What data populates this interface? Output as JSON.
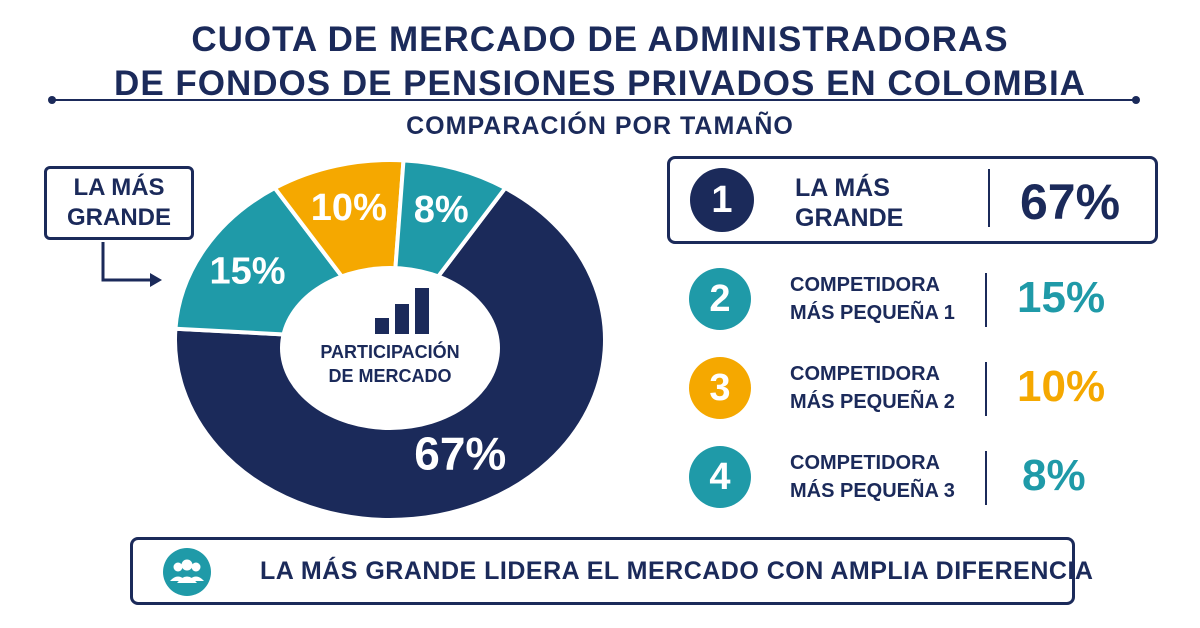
{
  "header": {
    "title_line1": "CUOTA DE MERCADO DE ADMINISTRADORAS",
    "title_line2": "DE FONDOS DE PENSIONES PRIVADOS EN COLOMBIA",
    "subtitle": "COMPARACIÓN POR TAMAÑO"
  },
  "callout": {
    "line1": "LA MÁS",
    "line2": "GRANDE"
  },
  "center": {
    "line1": "PARTICIPACIÓN",
    "line2": "DE MERCADO",
    "icon": "bar-chart-icon"
  },
  "chart_data": {
    "type": "pie",
    "categories": [
      "LA MÁS GRANDE",
      "COMPETIDORA MÁS PEQUEÑA 1",
      "COMPETIDORA MÁS PEQUEÑA 2",
      "COMPETIDORA MÁS PEQUEÑA 3"
    ],
    "values": [
      67,
      15,
      10,
      8
    ],
    "labels": [
      "67%",
      "15%",
      "10%",
      "8%"
    ],
    "colors": [
      "#1b2a5a",
      "#1f9aa8",
      "#f5a800",
      "#1f9aa8"
    ],
    "title": "CUOTA DE MERCADO DE ADMINISTRADORAS DE FONDOS DE PENSIONES PRIVADOS EN COLOMBIA",
    "subtitle": "COMPARACIÓN POR TAMAÑO",
    "style": "donut"
  },
  "ranking": [
    {
      "rank": "1",
      "line1": "LA MÁS",
      "line2": "GRANDE",
      "value": "67%",
      "color": "#1b2a5a"
    },
    {
      "rank": "2",
      "line1": "COMPETIDORA",
      "line2": "MÁS PEQUEÑA 1",
      "value": "15%",
      "color": "#1f9aa8"
    },
    {
      "rank": "3",
      "line1": "COMPETIDORA",
      "line2": "MÁS PEQUEÑA 2",
      "value": "10%",
      "color": "#f5a800"
    },
    {
      "rank": "4",
      "line1": "COMPETIDORA",
      "line2": "MÁS PEQUEÑA 3",
      "value": "8%",
      "color": "#1f9aa8"
    }
  ],
  "footer": {
    "text": "LA MÁS GRANDE LIDERA EL MERCADO CON AMPLIA DIFERENCIA",
    "icon": "people-group-icon"
  }
}
